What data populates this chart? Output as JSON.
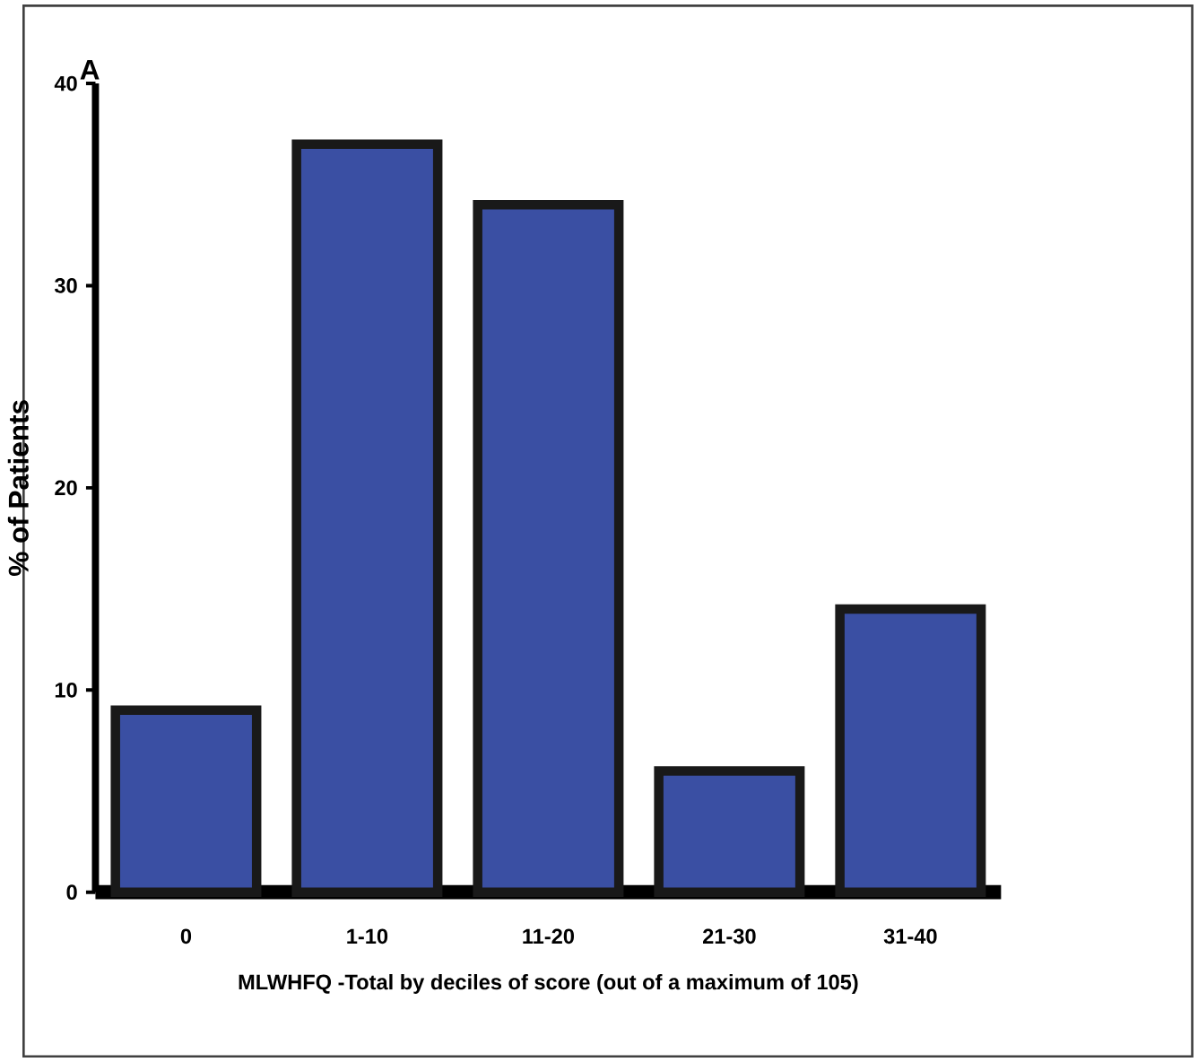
{
  "chart_data": {
    "type": "bar",
    "xlabel": "MLWHFQ -Total by deciles of score (out of a maximum of 105)",
    "ylabel": "% of Patients",
    "annotations": [
      "A"
    ],
    "categories": [
      "0",
      "1-10",
      "11-20",
      "21-30",
      "31-40"
    ],
    "values": [
      9,
      37,
      34,
      6,
      14
    ],
    "color": "#3a4fa3",
    "ylim": [
      0,
      40
    ],
    "yticks": [
      0,
      10,
      20,
      30,
      40
    ]
  }
}
